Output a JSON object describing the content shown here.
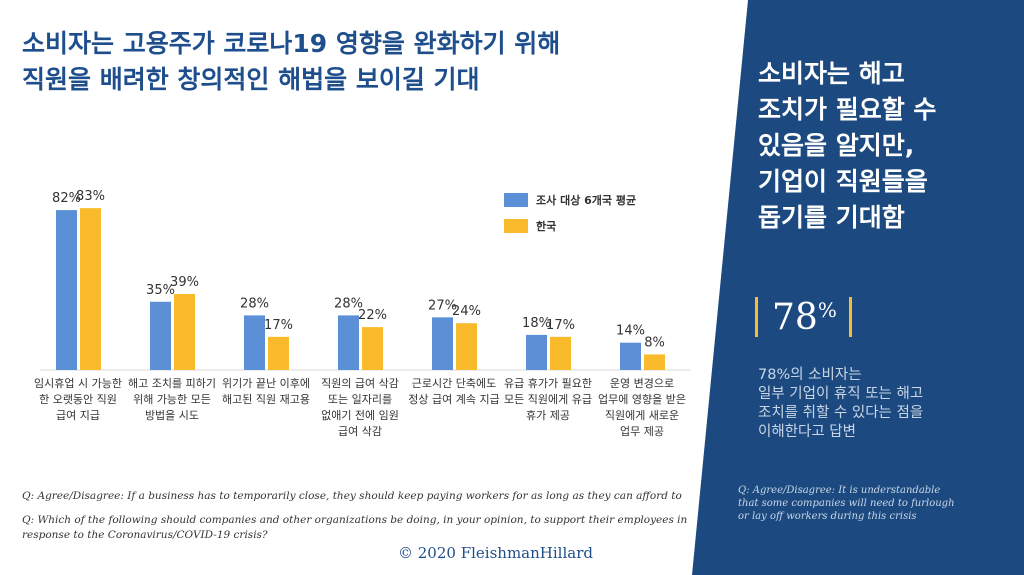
{
  "title_lines": [
    "소비자는 고용주가 코로나19 영향을 완화하기 위해",
    "직원을 배려한 창의적인 해법을 보이길 기대"
  ],
  "colors": {
    "avg": "#5b8fd6",
    "korea": "#f9bb2c",
    "panel": "#1c4a80",
    "title": "#1f4e8c",
    "accent": "#f7bd2e"
  },
  "chart_data": {
    "type": "bar",
    "categories": [
      [
        "임시휴업 시 가능한",
        "한 오랫동안 직원",
        "급여 지급"
      ],
      [
        "해고 조치를 피하기",
        "위해 가능한 모든",
        "방법을 시도"
      ],
      [
        "위기가 끝난 이후에",
        "해고된 직원 재고용"
      ],
      [
        "직원의 급여 삭감",
        "또는 일자리를",
        "없애기 전에 임원",
        "급여 삭감"
      ],
      [
        "근로시간 단축에도",
        "정상 급여 계속 지급"
      ],
      [
        "유급 휴가가 필요한",
        "모든 직원에게 유급",
        "휴가 제공"
      ],
      [
        "운영 변경으로",
        "업무에 영향을 받은",
        "직원에게 새로운",
        "업무 제공"
      ]
    ],
    "series": [
      {
        "name": "조사 대상 6개국 평균",
        "values": [
          82,
          35,
          28,
          28,
          27,
          18,
          14
        ],
        "labels": [
          "82%",
          "35%",
          "28%",
          "28%",
          "27%",
          "18%",
          "14%"
        ]
      },
      {
        "name": "한국",
        "values": [
          83,
          39,
          17,
          22,
          24,
          17,
          8
        ],
        "labels": [
          "83%",
          "39%",
          "17%",
          "22%",
          "24%",
          "17%",
          "8%"
        ]
      }
    ],
    "ylim": [
      0,
      100
    ]
  },
  "footnotes": [
    "Q: Agree/Disagree: If a business has to temporarily close, they should keep paying workers for as long as they can afford to",
    "Q: Which of the following should companies and other organizations be doing, in your opinion, to support their employees in response to the Coronavirus/COVID-19 crisis?"
  ],
  "copyright": "© 2020 FleishmanHillard",
  "panel": {
    "heading_lines": [
      "소비자는 해고",
      "조치가 필요할 수",
      "있음을 알지만,",
      "기업이 직원들을",
      "돕기를 기대함"
    ],
    "stat_value": "78",
    "stat_unit": "%",
    "body_lines": [
      "78%의 소비자는",
      "일부 기업이 휴직 또는 해고",
      "조치를 취할 수 있다는 점을",
      "이해한다고 답변"
    ],
    "footnote_lines": [
      "Q: Agree/Disagree: It is understandable",
      "that some companies will need to furlough",
      "or lay off workers during this crisis"
    ]
  }
}
